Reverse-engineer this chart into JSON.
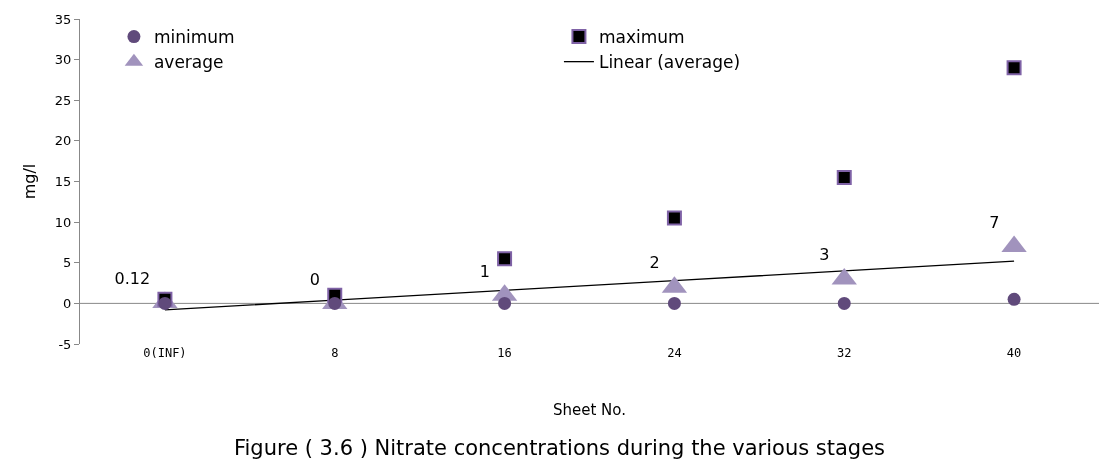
{
  "chart_data": {
    "type": "scatter",
    "title": "Figure ( 3.6 ) Nitrate concentrations during the various stages",
    "xlabel": "Sheet No.",
    "ylabel": "mg/l",
    "categories": [
      "0(INF)",
      "8",
      "16",
      "24",
      "32",
      "40"
    ],
    "series": [
      {
        "name": "minimum",
        "color": "#604a7b",
        "marker": "circle",
        "values": [
          0,
          0,
          0,
          0,
          0,
          0.5
        ]
      },
      {
        "name": "maximum",
        "color": "#000000",
        "marker": "square",
        "values": [
          0.5,
          1,
          5.5,
          10.5,
          15.5,
          29
        ]
      },
      {
        "name": "average",
        "color": "#a193bd",
        "marker": "triangle",
        "values": [
          0.12,
          0,
          1,
          2,
          3,
          7
        ],
        "value_labels": [
          "0.12",
          "0",
          "1",
          "2",
          "3",
          "7"
        ]
      },
      {
        "name": "Linear (average)",
        "type": "line",
        "color": "#000000",
        "marker": "none",
        "values": [
          -0.8,
          0.4,
          1.6,
          2.8,
          4.0,
          5.2
        ]
      }
    ],
    "ylim": [
      -5,
      35
    ],
    "yticks": [
      -5,
      0,
      5,
      10,
      15,
      20,
      25,
      30,
      35
    ],
    "legend": "top"
  }
}
